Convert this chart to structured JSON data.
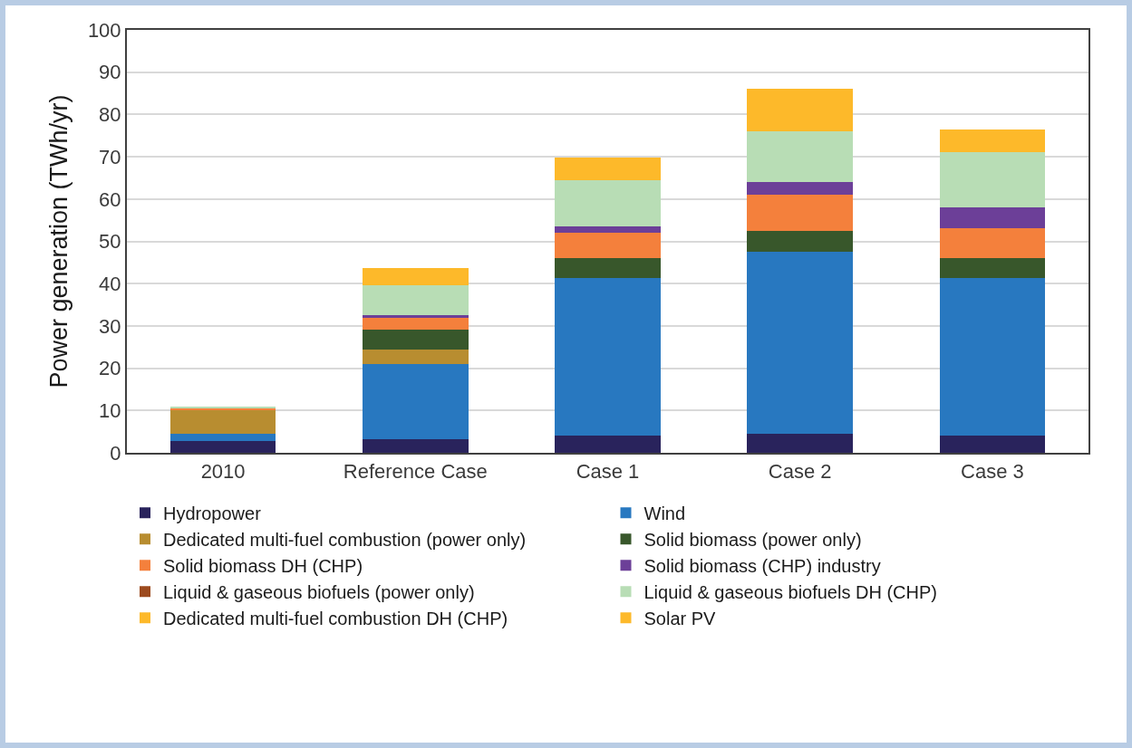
{
  "chart_data": {
    "type": "bar",
    "stacked": true,
    "ylabel": "Power generation (TWh/yr)",
    "categories": [
      "2010",
      "Reference Case",
      "Case 1",
      "Case 2",
      "Case 3"
    ],
    "series": [
      {
        "name": "Hydropower",
        "color": "#29235c",
        "values": [
          2.7,
          3.2,
          4.1,
          4.4,
          4.1
        ]
      },
      {
        "name": "Wind",
        "color": "#2878c0",
        "values": [
          1.7,
          17.7,
          37.2,
          43.1,
          37.2
        ]
      },
      {
        "name": "Dedicated multi-fuel combustion (power only)",
        "color": "#b88d30",
        "values": [
          5.7,
          3.6,
          0,
          0,
          0
        ]
      },
      {
        "name": "Solid biomass (power only)",
        "color": "#38572b",
        "values": [
          0,
          4.7,
          4.7,
          5.0,
          4.7
        ]
      },
      {
        "name": "Solid biomass DH (CHP)",
        "color": "#f4803c",
        "values": [
          0.4,
          2.6,
          6.0,
          8.6,
          7.0
        ]
      },
      {
        "name": "Solid biomass (CHP) industry",
        "color": "#6c3f98",
        "values": [
          0,
          0.7,
          1.5,
          2.9,
          5.0
        ]
      },
      {
        "name": "Liquid & gaseous biofuels (power only)",
        "color": "#9c4a1e",
        "values": [
          0,
          0,
          0,
          0,
          0
        ]
      },
      {
        "name": "Liquid & gaseous biofuels DH (CHP)",
        "color": "#b8ddb5",
        "values": [
          0.3,
          7.1,
          11.0,
          12.0,
          13.1
        ]
      },
      {
        "name": "Dedicated multi-fuel combustion DH (CHP)",
        "color": "#fdb92a",
        "values": [
          0,
          2.1,
          2.8,
          5.0,
          2.7
        ]
      },
      {
        "name": "Solar PV",
        "color": "#fdb92a",
        "values": [
          0,
          2.0,
          2.6,
          5.1,
          2.6
        ]
      }
    ],
    "ylim": [
      0,
      100
    ],
    "yticks": [
      0,
      10,
      20,
      30,
      40,
      50,
      60,
      70,
      80,
      90,
      100
    ],
    "grid": "y",
    "legend": "bottom"
  }
}
